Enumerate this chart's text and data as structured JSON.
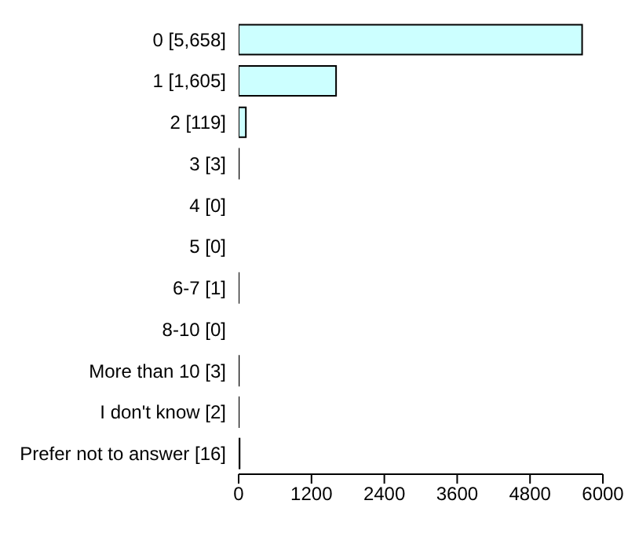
{
  "chart_data": {
    "type": "bar",
    "orientation": "horizontal",
    "categories": [
      "0 [5,658]",
      "1 [1,605]",
      "2 [119]",
      "3 [3]",
      "4 [0]",
      "5 [0]",
      "6-7 [1]",
      "8-10 [0]",
      "More than 10 [3]",
      "I don't know [2]",
      "Prefer not to answer [16]"
    ],
    "values": [
      5658,
      1605,
      119,
      3,
      0,
      0,
      1,
      0,
      3,
      2,
      16
    ],
    "color": "#ccffff",
    "xlim": [
      0,
      6000
    ],
    "xticks": [
      0,
      1200,
      2400,
      3600,
      4800,
      6000
    ],
    "grid": false,
    "legend": false
  }
}
